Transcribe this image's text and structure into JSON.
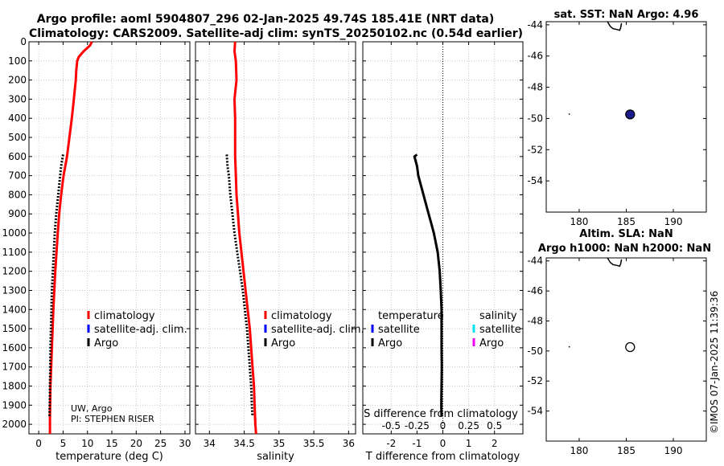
{
  "title": {
    "line1": "Argo profile: aoml 5904807_296 02-Jan-2025 49.74S 185.41E (NRT data)",
    "line2": "Climatology: CARS2009. Satellite-adj clim: synTS_20250102.nc (0.54d earlier)"
  },
  "colors": {
    "climatology": "#ff0000",
    "satellite_adj": "#0000ff",
    "argo": "#000000",
    "satellite_s": "#00e5ee",
    "argo_s": "#ee00ee",
    "grid": "#c8c8c8",
    "sst_marker": "#1a1a8c"
  },
  "chart_data": [
    {
      "type": "line",
      "name": "temperature-profile",
      "xlabel": "temperature (deg C)",
      "xlim": [
        -2,
        31
      ],
      "xticks": [
        0,
        5,
        10,
        15,
        20,
        25,
        30
      ],
      "ylim": [
        2050,
        0
      ],
      "yticks": [
        0,
        100,
        200,
        300,
        400,
        500,
        600,
        700,
        800,
        900,
        1000,
        1100,
        1200,
        1300,
        1400,
        1500,
        1600,
        1700,
        1800,
        1900,
        2000
      ],
      "grid": true,
      "legend": [
        "climatology",
        "satellite-adj. clim.",
        "Argo"
      ],
      "annotation": [
        "UW, Argo",
        "PI: STEPHEN RISER"
      ],
      "series": [
        {
          "name": "climatology",
          "style": "solid",
          "depth": [
            0,
            20,
            50,
            80,
            100,
            150,
            200,
            250,
            300,
            400,
            500,
            600,
            700,
            800,
            900,
            1000,
            1200,
            1400,
            1600,
            1800,
            1960,
            2050
          ],
          "values": [
            10.9,
            10.5,
            9.2,
            8.2,
            7.9,
            7.7,
            7.6,
            7.4,
            7.2,
            6.8,
            6.3,
            5.8,
            5.1,
            4.6,
            4.2,
            3.9,
            3.4,
            3.0,
            2.7,
            2.4,
            2.3,
            2.3
          ]
        },
        {
          "name": "Argo",
          "style": "dotted",
          "depth": [
            590,
            650,
            700,
            800,
            900,
            1000,
            1100,
            1200,
            1300,
            1400,
            1500,
            1600,
            1700,
            1800,
            1900,
            1960
          ],
          "values": [
            5.0,
            4.6,
            4.4,
            4.0,
            3.6,
            3.3,
            3.1,
            2.9,
            2.7,
            2.6,
            2.5,
            2.4,
            2.35,
            2.3,
            2.25,
            2.2
          ]
        }
      ]
    },
    {
      "type": "line",
      "name": "salinity-profile",
      "xlabel": "salinity",
      "xlim": [
        33.8,
        36.1
      ],
      "xticks": [
        34,
        34.5,
        35,
        35.5,
        36
      ],
      "ylim": [
        2050,
        0
      ],
      "grid": true,
      "legend": [
        "climatology",
        "satellite-adj. clim.",
        "Argo"
      ],
      "series": [
        {
          "name": "climatology",
          "style": "solid",
          "depth": [
            0,
            50,
            100,
            200,
            300,
            400,
            500,
            600,
            700,
            800,
            900,
            1000,
            1100,
            1200,
            1300,
            1400,
            1500,
            1600,
            1700,
            1800,
            1900,
            2000,
            2050
          ],
          "values": [
            34.37,
            34.36,
            34.38,
            34.39,
            34.36,
            34.37,
            34.37,
            34.37,
            34.38,
            34.39,
            34.41,
            34.43,
            34.46,
            34.49,
            34.52,
            34.55,
            34.58,
            34.6,
            34.62,
            34.64,
            34.65,
            34.66,
            34.67
          ]
        },
        {
          "name": "Argo",
          "style": "dotted",
          "depth": [
            590,
            650,
            700,
            800,
            900,
            1000,
            1100,
            1200,
            1300,
            1400,
            1500,
            1600,
            1700,
            1800,
            1900,
            1960
          ],
          "values": [
            34.25,
            34.26,
            34.28,
            34.3,
            34.33,
            34.36,
            34.4,
            34.44,
            34.48,
            34.51,
            34.54,
            34.56,
            34.58,
            34.6,
            34.61,
            34.62
          ]
        }
      ]
    },
    {
      "type": "line",
      "name": "difference-profile",
      "xlabel": "T difference from climatology",
      "xlabel2": "S difference from climatology",
      "xlim": [
        -3.1,
        3.1
      ],
      "xticks": [
        -2,
        -1,
        0,
        1,
        2
      ],
      "xticks2": [
        -0.5,
        -0.25,
        0,
        0.25,
        0.5
      ],
      "ylim": [
        2050,
        0
      ],
      "grid": true,
      "legend_left_header": "temperature",
      "legend_left": [
        "satellite",
        "Argo"
      ],
      "legend_right_header": "salinity",
      "legend_right": [
        "satellite",
        "Argo"
      ],
      "series": [
        {
          "name": "T diff Argo",
          "style": "solid",
          "depth": [
            590,
            600,
            650,
            700,
            750,
            800,
            850,
            900,
            950,
            1000,
            1100,
            1200,
            1300,
            1400,
            1500,
            1600,
            1700,
            1800,
            1900,
            1960
          ],
          "values": [
            -1.0,
            -1.1,
            -1.0,
            -0.95,
            -0.85,
            -0.75,
            -0.65,
            -0.55,
            -0.45,
            -0.35,
            -0.2,
            -0.12,
            -0.08,
            -0.05,
            -0.05,
            -0.05,
            -0.04,
            -0.05,
            -0.06,
            -0.05
          ]
        }
      ]
    },
    {
      "type": "scatter",
      "name": "sst-map",
      "title": "sat. SST: NaN Argo: 4.96",
      "xlim": [
        176.5,
        193.5
      ],
      "ylim": [
        -56,
        -43.8
      ],
      "xticks": [
        180,
        185,
        190
      ],
      "yticks": [
        -44,
        -46,
        -48,
        -50,
        -52,
        -54
      ],
      "points": [
        {
          "lon": 185.41,
          "lat": -49.74,
          "filled": true
        }
      ],
      "coastline_fragments": [
        {
          "lon": [
            183.0,
            183.3,
            183.6,
            184.0,
            184.3,
            184.4,
            184.5
          ],
          "lat": [
            -43.8,
            -44.1,
            -44.25,
            -44.3,
            -44.35,
            -44.2,
            -43.9
          ]
        },
        {
          "lon": [
            178.9,
            179.0
          ],
          "lat": [
            -49.7,
            -49.75
          ]
        }
      ]
    },
    {
      "type": "scatter",
      "name": "sla-map",
      "title_line1": "Altim. SLA: NaN",
      "title_line2": "Argo h1000: NaN h2000: NaN",
      "xlim": [
        176.5,
        193.5
      ],
      "ylim": [
        -56,
        -43.8
      ],
      "xticks": [
        180,
        185,
        190
      ],
      "yticks": [
        -44,
        -46,
        -48,
        -50,
        -52,
        -54
      ],
      "points": [
        {
          "lon": 185.41,
          "lat": -49.74,
          "filled": false
        }
      ],
      "coastline_fragments": [
        {
          "lon": [
            183.0,
            183.3,
            183.6,
            184.0,
            184.3,
            184.4,
            184.5
          ],
          "lat": [
            -43.8,
            -44.1,
            -44.25,
            -44.3,
            -44.35,
            -44.2,
            -43.9
          ]
        },
        {
          "lon": [
            178.9,
            179.0
          ],
          "lat": [
            -49.7,
            -49.75
          ]
        }
      ]
    }
  ],
  "credit": "©IMOS 07-Jan-2025 11:39:36"
}
